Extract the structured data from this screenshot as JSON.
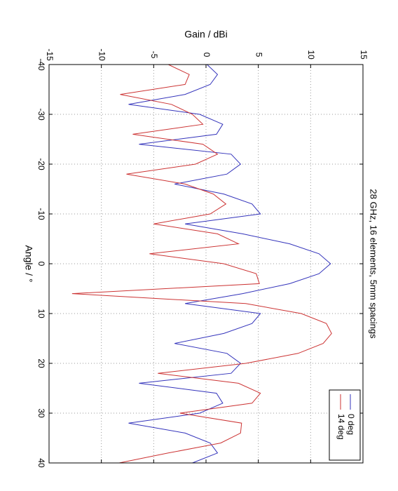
{
  "chart_data": {
    "type": "line",
    "title": "28 GHz, 16 elements, 5mm spacings",
    "xlabel": "Angle / °",
    "ylabel": "Gain / dBi",
    "x": [
      -40,
      -38,
      -36,
      -34,
      -32,
      -30,
      -28,
      -26,
      -24,
      -22,
      -20,
      -18,
      -16,
      -14,
      -12,
      -10,
      -8,
      -6,
      -4,
      -2,
      0,
      2,
      4,
      6,
      8,
      10,
      12,
      14,
      16,
      18,
      20,
      22,
      24,
      26,
      28,
      30,
      32,
      34,
      36,
      38,
      40
    ],
    "series": [
      {
        "name": "0 deg",
        "color": "#3333bb",
        "values": [
          0.1,
          1.1,
          0.4,
          -2,
          -7.4,
          -0.6,
          1.6,
          1,
          -6.4,
          2.4,
          3.3,
          2,
          -3,
          1.7,
          4.4,
          5.2,
          -2,
          3.5,
          8,
          10.8,
          11.9,
          10.8,
          8,
          3.5,
          -2,
          5.2,
          4.4,
          1.7,
          -3,
          2,
          3.3,
          2.4,
          -6.4,
          1,
          1.6,
          -0.6,
          -7.4,
          -2,
          0.4,
          1.1,
          -1.3
        ]
      },
      {
        "name": "14 deg",
        "color": "#cc3333",
        "values": [
          -3.6,
          -1.6,
          -2,
          -8.2,
          -3.3,
          -1.3,
          -0.3,
          -7,
          -0.3,
          1.1,
          -1,
          -7.6,
          -2,
          0.7,
          1.9,
          0.4,
          -5,
          1.1,
          3.1,
          -5.4,
          1.7,
          4.8,
          5.1,
          -12.8,
          3.8,
          9.1,
          11.5,
          12,
          11.2,
          8.8,
          3.8,
          -4.6,
          3.1,
          5.2,
          4.4,
          -2.5,
          3.4,
          3.3,
          1.4,
          -3.6,
          -8.3
        ]
      }
    ],
    "xlim": [
      -40,
      40
    ],
    "xticks": [
      -40,
      -30,
      -20,
      -10,
      0,
      10,
      20,
      30,
      40
    ],
    "ylim": [
      -15,
      15
    ],
    "yticks": [
      -15,
      -10,
      -5,
      0,
      5,
      10,
      15
    ],
    "grid": true,
    "legend": "upper right"
  }
}
